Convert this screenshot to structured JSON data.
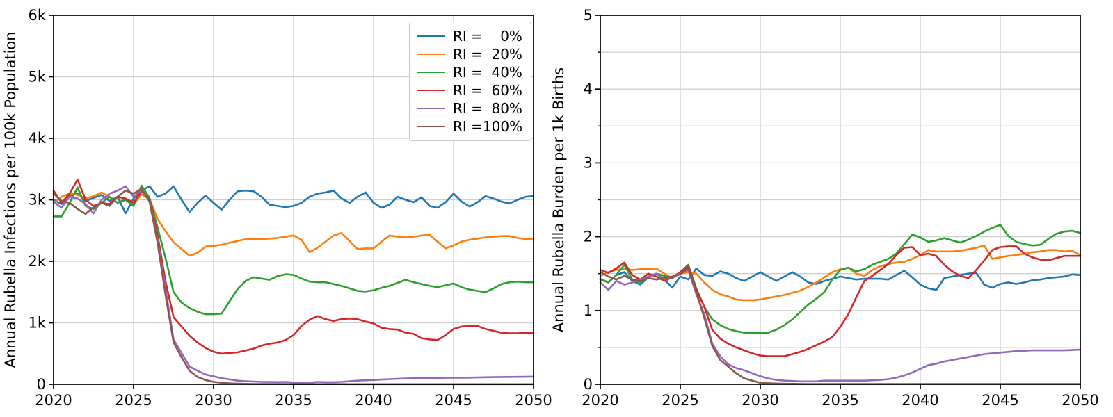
{
  "figure_title": "",
  "style": {
    "background": "#ffffff",
    "grid_color": "#d0d0d0",
    "spine_color": "#000000",
    "text_color": "#000000",
    "legend_border": "#cccccc"
  },
  "legend": {
    "position": "upper right of left chart",
    "entries": [
      {
        "prefix": "RI = ",
        "value": "0%",
        "color": "#1f77b4"
      },
      {
        "prefix": "RI = ",
        "value": "20%",
        "color": "#ff7f0e"
      },
      {
        "prefix": "RI = ",
        "value": "40%",
        "color": "#2ca02c"
      },
      {
        "prefix": "RI = ",
        "value": "60%",
        "color": "#d62728"
      },
      {
        "prefix": "RI = ",
        "value": "80%",
        "color": "#9467bd"
      },
      {
        "prefix": "RI = ",
        "value": "100%",
        "color": "#8c564b"
      }
    ]
  },
  "chart_data": [
    {
      "id": "infections",
      "type": "line",
      "title": "",
      "xlabel": "",
      "ylabel": "Annual Rubella Infections per 100k Population",
      "xlim": [
        2020,
        2050
      ],
      "ylim": [
        0,
        6000
      ],
      "grid": true,
      "x_ticks": [
        2020,
        2025,
        2030,
        2035,
        2040,
        2045,
        2050
      ],
      "x_tick_labels": [
        "2020",
        "2025",
        "2030",
        "2035",
        "2040",
        "2045",
        "2050"
      ],
      "y_ticks": [
        0,
        1000,
        2000,
        3000,
        4000,
        5000,
        6000
      ],
      "y_tick_labels": [
        "0",
        "1k",
        "2k",
        "3k",
        "4k",
        "5k",
        "6k"
      ],
      "y_gridlines": [
        1000,
        2000,
        3000,
        4000,
        5000
      ],
      "y_minor_ticks": [],
      "x_start": 2020,
      "x_step": 0.5,
      "series": [
        {
          "name": "RI =   0%",
          "color": "#1f77b4",
          "values": [
            3000,
            2930,
            3070,
            3100,
            2980,
            3030,
            3080,
            2980,
            3050,
            2780,
            3020,
            3150,
            3220,
            3050,
            3100,
            3220,
            3000,
            2800,
            2950,
            3070,
            2950,
            2840,
            3000,
            3140,
            3150,
            3140,
            3050,
            2920,
            2900,
            2880,
            2900,
            2950,
            3050,
            3100,
            3120,
            3150,
            3020,
            2950,
            3050,
            3120,
            2950,
            2870,
            2920,
            3050,
            3000,
            2960,
            3040,
            2900,
            2870,
            2960,
            3100,
            2970,
            2890,
            2960,
            3060,
            3020,
            2970,
            2940,
            3000,
            3050,
            3060
          ]
        },
        {
          "name": "RI =  20%",
          "color": "#ff7f0e",
          "values": [
            2950,
            3050,
            3100,
            3080,
            3020,
            3060,
            3120,
            3050,
            2950,
            3020,
            2920,
            3090,
            3010,
            2690,
            2490,
            2310,
            2200,
            2090,
            2140,
            2240,
            2250,
            2270,
            2300,
            2330,
            2360,
            2360,
            2360,
            2370,
            2380,
            2400,
            2420,
            2350,
            2150,
            2220,
            2320,
            2420,
            2460,
            2330,
            2200,
            2210,
            2210,
            2320,
            2420,
            2400,
            2390,
            2400,
            2420,
            2430,
            2320,
            2210,
            2260,
            2320,
            2350,
            2370,
            2390,
            2400,
            2410,
            2410,
            2380,
            2360,
            2370
          ]
        },
        {
          "name": "RI =  40%",
          "color": "#2ca02c",
          "values": [
            2730,
            2730,
            2950,
            3200,
            2900,
            2850,
            2950,
            3050,
            2950,
            3000,
            2900,
            3230,
            3030,
            2550,
            2050,
            1500,
            1330,
            1240,
            1180,
            1140,
            1140,
            1150,
            1350,
            1550,
            1680,
            1740,
            1720,
            1700,
            1760,
            1790,
            1780,
            1720,
            1670,
            1660,
            1660,
            1630,
            1600,
            1560,
            1520,
            1510,
            1530,
            1570,
            1600,
            1650,
            1700,
            1660,
            1630,
            1600,
            1580,
            1610,
            1640,
            1580,
            1540,
            1520,
            1500,
            1560,
            1630,
            1660,
            1670,
            1660,
            1660
          ]
        },
        {
          "name": "RI =  60%",
          "color": "#d62728",
          "values": [
            3150,
            2950,
            3100,
            3330,
            3000,
            2900,
            2950,
            2930,
            3050,
            3020,
            2950,
            3140,
            3010,
            2430,
            1670,
            1090,
            940,
            790,
            680,
            590,
            530,
            500,
            510,
            520,
            550,
            580,
            630,
            660,
            680,
            720,
            800,
            950,
            1050,
            1110,
            1060,
            1030,
            1060,
            1070,
            1060,
            1020,
            990,
            920,
            900,
            890,
            840,
            820,
            750,
            730,
            720,
            800,
            900,
            940,
            950,
            950,
            900,
            870,
            840,
            830,
            830,
            840,
            840
          ]
        },
        {
          "name": "RI =  80%",
          "color": "#9467bd",
          "values": [
            2970,
            2870,
            3050,
            3020,
            2930,
            2780,
            3000,
            3100,
            3150,
            3220,
            3050,
            3160,
            2990,
            2350,
            1550,
            730,
            510,
            290,
            220,
            160,
            130,
            100,
            80,
            60,
            50,
            45,
            40,
            38,
            36,
            40,
            30,
            28,
            26,
            40,
            35,
            35,
            40,
            50,
            60,
            65,
            70,
            78,
            85,
            90,
            95,
            98,
            100,
            103,
            105,
            106,
            107,
            108,
            110,
            112,
            115,
            118,
            120,
            121,
            122,
            123,
            125
          ]
        },
        {
          "name": "RI = 100%",
          "color": "#8c564b",
          "values": [
            3100,
            2980,
            2950,
            2850,
            2770,
            2880,
            2950,
            2900,
            3050,
            3150,
            3100,
            3180,
            2970,
            2300,
            1450,
            680,
            440,
            220,
            120,
            70,
            40,
            25,
            15,
            10,
            8,
            6,
            5,
            5,
            5,
            4,
            4,
            4,
            3,
            3,
            3,
            3,
            3,
            2,
            2,
            2,
            2,
            2,
            2,
            2,
            2,
            2,
            2,
            2,
            2,
            2,
            2,
            2,
            2,
            2,
            2,
            2,
            2,
            2,
            2,
            2,
            2
          ]
        }
      ]
    },
    {
      "id": "burden",
      "type": "line",
      "title": "",
      "xlabel": "",
      "ylabel": "Annual Rubella Burden per 1k Births",
      "xlim": [
        2020,
        2050
      ],
      "ylim": [
        0,
        5
      ],
      "grid": true,
      "x_ticks": [
        2020,
        2025,
        2030,
        2035,
        2040,
        2045,
        2050
      ],
      "x_tick_labels": [
        "2020",
        "2025",
        "2030",
        "2035",
        "2040",
        "2045",
        "2050"
      ],
      "y_ticks": [
        0,
        1,
        2,
        3,
        4,
        5
      ],
      "y_tick_labels": [
        "0",
        "1",
        "2",
        "3",
        "4",
        "5"
      ],
      "y_gridlines": [
        0.5,
        1,
        1.5,
        2,
        2.5,
        3,
        3.5,
        4,
        4.5
      ],
      "y_minor_ticks": [
        0.5,
        1.5,
        2.5,
        3.5,
        4.5
      ],
      "x_start": 2020,
      "x_step": 0.5,
      "series": [
        {
          "name": "RI =   0%",
          "color": "#1f77b4",
          "values": [
            1.42,
            1.38,
            1.48,
            1.52,
            1.4,
            1.35,
            1.45,
            1.5,
            1.42,
            1.31,
            1.46,
            1.42,
            1.57,
            1.48,
            1.47,
            1.53,
            1.5,
            1.44,
            1.4,
            1.46,
            1.52,
            1.46,
            1.4,
            1.46,
            1.52,
            1.46,
            1.38,
            1.36,
            1.4,
            1.43,
            1.46,
            1.44,
            1.42,
            1.43,
            1.43,
            1.43,
            1.42,
            1.48,
            1.54,
            1.45,
            1.35,
            1.3,
            1.28,
            1.44,
            1.46,
            1.48,
            1.5,
            1.51,
            1.35,
            1.31,
            1.36,
            1.38,
            1.36,
            1.38,
            1.41,
            1.42,
            1.44,
            1.45,
            1.46,
            1.49,
            1.48
          ]
        },
        {
          "name": "RI =  20%",
          "color": "#ff7f0e",
          "values": [
            1.47,
            1.52,
            1.55,
            1.56,
            1.55,
            1.56,
            1.56,
            1.57,
            1.5,
            1.44,
            1.5,
            1.52,
            1.5,
            1.38,
            1.28,
            1.22,
            1.19,
            1.15,
            1.14,
            1.14,
            1.15,
            1.17,
            1.19,
            1.21,
            1.24,
            1.27,
            1.32,
            1.38,
            1.45,
            1.52,
            1.56,
            1.58,
            1.5,
            1.47,
            1.55,
            1.6,
            1.63,
            1.65,
            1.66,
            1.7,
            1.75,
            1.82,
            1.8,
            1.8,
            1.8,
            1.81,
            1.83,
            1.85,
            1.88,
            1.7,
            1.72,
            1.74,
            1.75,
            1.77,
            1.79,
            1.8,
            1.82,
            1.82,
            1.8,
            1.81,
            1.75
          ]
        },
        {
          "name": "RI =  40%",
          "color": "#2ca02c",
          "values": [
            1.43,
            1.38,
            1.48,
            1.62,
            1.42,
            1.38,
            1.45,
            1.5,
            1.47,
            1.44,
            1.52,
            1.62,
            1.3,
            1.05,
            0.88,
            0.8,
            0.75,
            0.72,
            0.7,
            0.7,
            0.7,
            0.7,
            0.74,
            0.8,
            0.88,
            0.98,
            1.08,
            1.16,
            1.25,
            1.42,
            1.55,
            1.58,
            1.53,
            1.56,
            1.62,
            1.66,
            1.7,
            1.77,
            1.9,
            2.03,
            1.99,
            1.93,
            1.95,
            1.98,
            1.95,
            1.92,
            1.96,
            2.01,
            2.07,
            2.12,
            2.16,
            2.01,
            1.93,
            1.9,
            1.88,
            1.89,
            1.97,
            2.04,
            2.07,
            2.08,
            2.05
          ]
        },
        {
          "name": "RI =  60%",
          "color": "#d62728",
          "values": [
            1.55,
            1.51,
            1.57,
            1.65,
            1.48,
            1.42,
            1.5,
            1.46,
            1.4,
            1.45,
            1.52,
            1.6,
            1.28,
            1.05,
            0.74,
            0.62,
            0.55,
            0.5,
            0.46,
            0.42,
            0.39,
            0.38,
            0.38,
            0.38,
            0.41,
            0.44,
            0.48,
            0.53,
            0.58,
            0.64,
            0.78,
            0.95,
            1.18,
            1.4,
            1.47,
            1.55,
            1.63,
            1.75,
            1.85,
            1.86,
            1.75,
            1.77,
            1.74,
            1.62,
            1.53,
            1.47,
            1.44,
            1.55,
            1.68,
            1.82,
            1.86,
            1.87,
            1.87,
            1.77,
            1.72,
            1.69,
            1.68,
            1.71,
            1.74,
            1.74,
            1.74
          ]
        },
        {
          "name": "RI =  80%",
          "color": "#9467bd",
          "values": [
            1.38,
            1.28,
            1.4,
            1.35,
            1.38,
            1.42,
            1.46,
            1.5,
            1.42,
            1.46,
            1.5,
            1.55,
            1.22,
            0.95,
            0.55,
            0.38,
            0.27,
            0.22,
            0.19,
            0.15,
            0.11,
            0.08,
            0.06,
            0.05,
            0.045,
            0.04,
            0.04,
            0.04,
            0.05,
            0.05,
            0.05,
            0.05,
            0.05,
            0.05,
            0.055,
            0.06,
            0.07,
            0.09,
            0.12,
            0.16,
            0.21,
            0.26,
            0.28,
            0.31,
            0.33,
            0.35,
            0.37,
            0.39,
            0.41,
            0.42,
            0.43,
            0.44,
            0.45,
            0.455,
            0.46,
            0.46,
            0.46,
            0.46,
            0.46,
            0.465,
            0.47
          ]
        },
        {
          "name": "RI = 100%",
          "color": "#8c564b",
          "values": [
            1.52,
            1.46,
            1.42,
            1.47,
            1.42,
            1.4,
            1.44,
            1.42,
            1.44,
            1.46,
            1.49,
            1.58,
            1.25,
            0.9,
            0.52,
            0.33,
            0.24,
            0.15,
            0.08,
            0.05,
            0.02,
            0.015,
            0.01,
            0.008,
            0.007,
            0.006,
            0.005,
            0.005,
            0.005,
            0.005,
            0.005,
            0.005,
            0.005,
            0.005,
            0.005,
            0.005,
            0.005,
            0.005,
            0.005,
            0.005,
            0.005,
            0.005,
            0.005,
            0.005,
            0.005,
            0.005,
            0.005,
            0.005,
            0.005,
            0.005,
            0.005,
            0.005,
            0.005,
            0.005,
            0.005,
            0.005,
            0.005,
            0.005,
            0.005,
            0.005,
            0.005
          ]
        }
      ]
    }
  ]
}
